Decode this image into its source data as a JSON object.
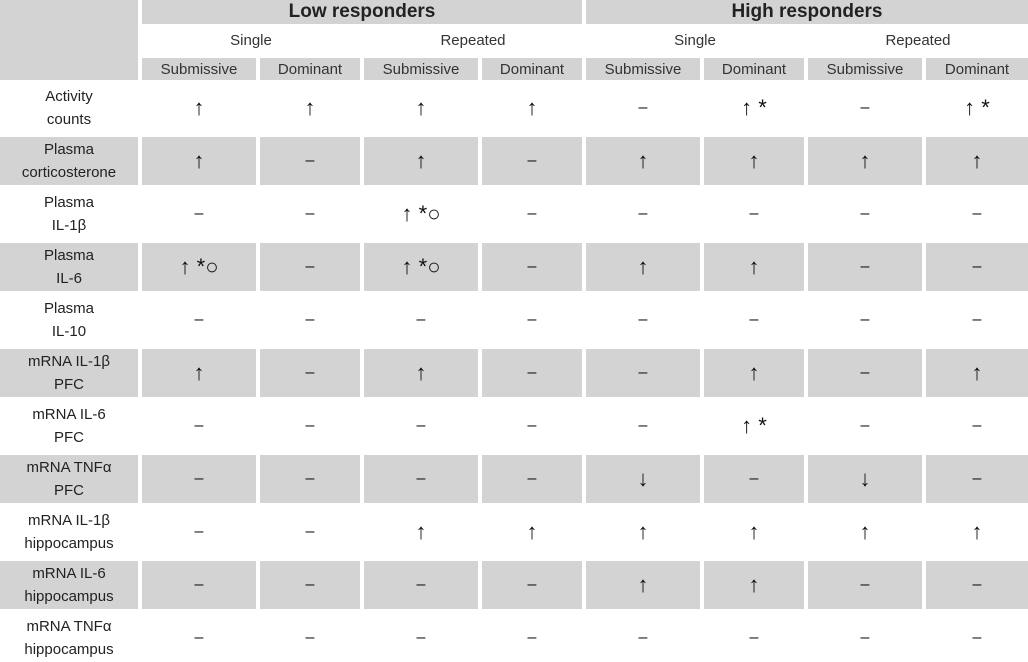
{
  "header": {
    "groups": [
      "Low responders",
      "High responders"
    ],
    "conditions": [
      "Single",
      "Repeated",
      "Single",
      "Repeated"
    ],
    "roles": [
      "Submissive",
      "Dominant",
      "Submissive",
      "Dominant",
      "Submissive",
      "Dominant",
      "Submissive",
      "Dominant"
    ]
  },
  "rows": [
    {
      "label": [
        "Activity",
        "counts"
      ],
      "values": [
        "↑",
        "↑",
        "↑",
        "↑",
        "–",
        "↑ *",
        "–",
        "↑ *"
      ]
    },
    {
      "label": [
        "Plasma",
        "corticosterone"
      ],
      "values": [
        "↑",
        "–",
        "↑",
        "–",
        "↑",
        "↑",
        "↑",
        "↑"
      ]
    },
    {
      "label": [
        "Plasma",
        "IL-1β"
      ],
      "values": [
        "–",
        "–",
        "↑ *○",
        "–",
        "–",
        "–",
        "–",
        "–"
      ]
    },
    {
      "label": [
        "Plasma",
        "IL-6"
      ],
      "values": [
        "↑ *○",
        "–",
        "↑ *○",
        "–",
        "↑",
        "↑",
        "–",
        "–"
      ]
    },
    {
      "label": [
        "Plasma",
        "IL-10"
      ],
      "values": [
        "–",
        "–",
        "–",
        "–",
        "–",
        "–",
        "–",
        "–"
      ]
    },
    {
      "label": [
        "mRNA IL-1β",
        "PFC"
      ],
      "values": [
        "↑",
        "–",
        "↑",
        "–",
        "–",
        "↑",
        "–",
        "↑"
      ]
    },
    {
      "label": [
        "mRNA IL-6",
        "PFC"
      ],
      "values": [
        "–",
        "–",
        "–",
        "–",
        "–",
        "↑ *",
        "–",
        "–"
      ]
    },
    {
      "label": [
        "mRNA TNFα",
        "PFC"
      ],
      "values": [
        "–",
        "–",
        "–",
        "–",
        "↓",
        "–",
        "↓",
        "–"
      ]
    },
    {
      "label": [
        "mRNA IL-1β",
        "hippocampus"
      ],
      "values": [
        "–",
        "–",
        "↑",
        "↑",
        "↑",
        "↑",
        "↑",
        "↑"
      ]
    },
    {
      "label": [
        "mRNA IL-6",
        "hippocampus"
      ],
      "values": [
        "–",
        "–",
        "–",
        "–",
        "↑",
        "↑",
        "–",
        "–"
      ]
    },
    {
      "label": [
        "mRNA TNFα",
        "hippocampus"
      ],
      "values": [
        "–",
        "–",
        "–",
        "–",
        "–",
        "–",
        "–",
        "–"
      ]
    }
  ]
}
